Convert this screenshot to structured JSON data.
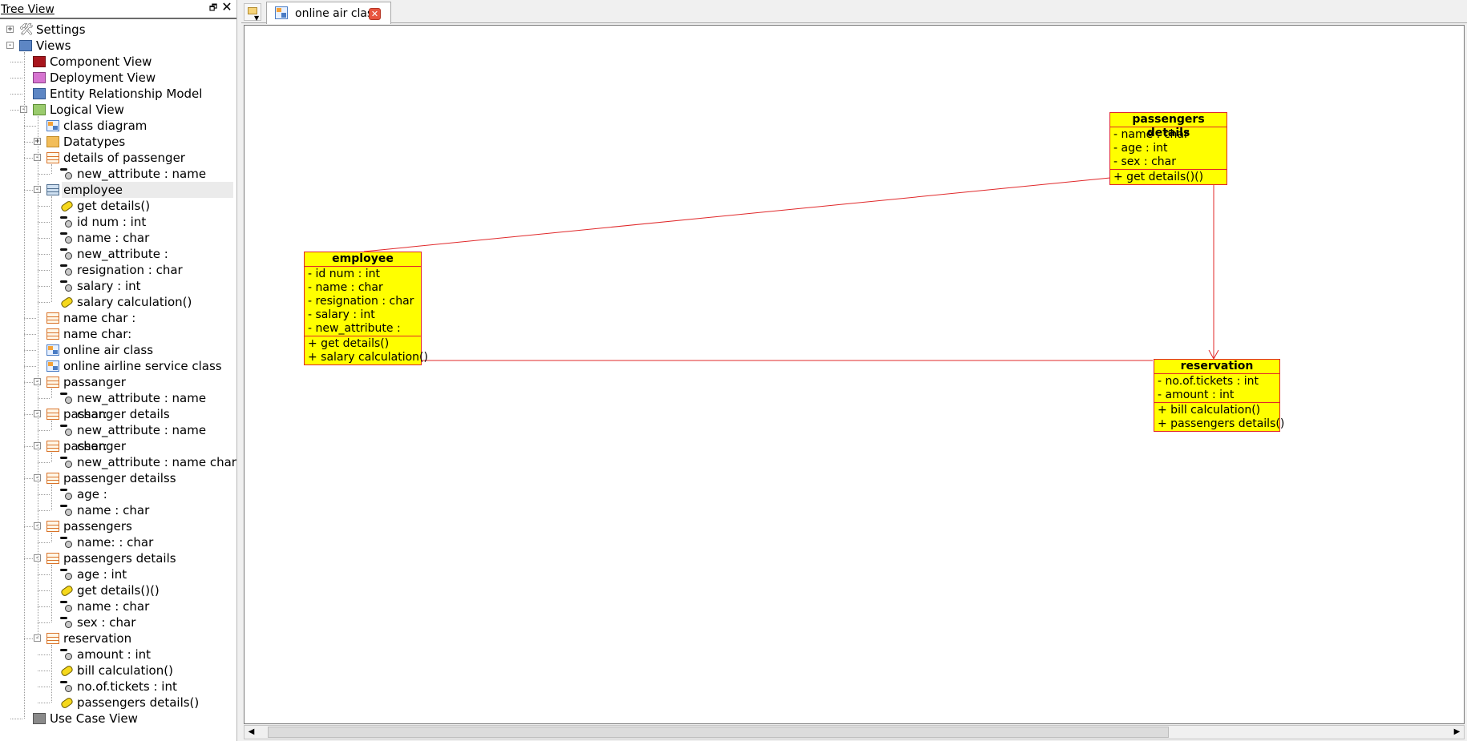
{
  "tree": {
    "title": "Tree View",
    "restore_glyph": "🗗",
    "close_glyph": "✕",
    "nodes": [
      {
        "label": "Settings",
        "icon": "settings-icon",
        "level": 0,
        "toggle": "+"
      },
      {
        "label": "Views",
        "icon": "views-folder-icon",
        "level": 0,
        "toggle": "−"
      },
      {
        "label": "Component View",
        "icon": "component-view-icon",
        "level": 1
      },
      {
        "label": "Deployment View",
        "icon": "deployment-view-icon",
        "level": 1
      },
      {
        "label": "Entity Relationship Model",
        "icon": "erm-icon",
        "level": 1
      },
      {
        "label": "Logical View",
        "icon": "logical-view-icon",
        "level": 1,
        "toggle": "−"
      },
      {
        "label": "class diagram",
        "icon": "diagram-icon",
        "level": 2
      },
      {
        "label": "Datatypes",
        "icon": "folder-icon",
        "level": 2,
        "toggle": "+"
      },
      {
        "label": "details of passenger",
        "icon": "class-icon",
        "level": 2,
        "toggle": "−"
      },
      {
        "label": "new_attribute : name char:",
        "icon": "attribute-icon",
        "level": 3
      },
      {
        "label": "employee",
        "icon": "class-icon-selected",
        "level": 2,
        "toggle": "−",
        "selected": true
      },
      {
        "label": "get details()",
        "icon": "operation-icon",
        "level": 3
      },
      {
        "label": "id num : int",
        "icon": "attribute-icon",
        "level": 3
      },
      {
        "label": "name : char",
        "icon": "attribute-icon",
        "level": 3
      },
      {
        "label": "new_attribute :",
        "icon": "attribute-icon",
        "level": 3
      },
      {
        "label": "resignation : char",
        "icon": "attribute-icon",
        "level": 3
      },
      {
        "label": "salary : int",
        "icon": "attribute-icon",
        "level": 3
      },
      {
        "label": "salary calculation()",
        "icon": "operation-icon",
        "level": 3
      },
      {
        "label": "name char :",
        "icon": "class-icon",
        "level": 2
      },
      {
        "label": "name char:",
        "icon": "class-icon",
        "level": 2
      },
      {
        "label": "online air class",
        "icon": "diagram-icon",
        "level": 2
      },
      {
        "label": "online airline service class",
        "icon": "diagram-icon",
        "level": 2
      },
      {
        "label": "passanger",
        "icon": "class-icon",
        "level": 2,
        "toggle": "−"
      },
      {
        "label": "new_attribute : name char:",
        "icon": "attribute-icon",
        "level": 3
      },
      {
        "label": "passanger details",
        "icon": "class-icon",
        "level": 2,
        "toggle": "−"
      },
      {
        "label": "new_attribute : name char:",
        "icon": "attribute-icon",
        "level": 3
      },
      {
        "label": "passenger",
        "icon": "class-icon",
        "level": 2,
        "toggle": "−"
      },
      {
        "label": "new_attribute : name char :",
        "icon": "attribute-icon",
        "level": 3
      },
      {
        "label": "passenger detailss",
        "icon": "class-icon",
        "level": 2,
        "toggle": "−"
      },
      {
        "label": "age  :",
        "icon": "attribute-icon",
        "level": 3
      },
      {
        "label": "name : char",
        "icon": "attribute-icon",
        "level": 3
      },
      {
        "label": "passengers",
        "icon": "class-icon",
        "level": 2,
        "toggle": "−"
      },
      {
        "label": "name: : char",
        "icon": "attribute-icon",
        "level": 3
      },
      {
        "label": "passengers details",
        "icon": "class-icon",
        "level": 2,
        "toggle": "−"
      },
      {
        "label": "age : int",
        "icon": "attribute-icon",
        "level": 3
      },
      {
        "label": "get details()()",
        "icon": "operation-icon",
        "level": 3
      },
      {
        "label": "name : char",
        "icon": "attribute-icon",
        "level": 3
      },
      {
        "label": "sex : char",
        "icon": "attribute-icon",
        "level": 3
      },
      {
        "label": "reservation",
        "icon": "class-icon",
        "level": 2,
        "toggle": "−"
      },
      {
        "label": "amount : int",
        "icon": "attribute-icon",
        "level": 3
      },
      {
        "label": "bill calculation()",
        "icon": "operation-icon",
        "level": 3
      },
      {
        "label": "no.of.tickets : int",
        "icon": "attribute-icon",
        "level": 3
      },
      {
        "label": "passengers details()",
        "icon": "operation-icon",
        "level": 3
      },
      {
        "label": "Use Case View",
        "icon": "use-case-view-icon",
        "level": 1
      }
    ]
  },
  "editor": {
    "tab_label": "online air class",
    "tab_close_glyph": "✕",
    "scroll_left_glyph": "◀",
    "scroll_right_glyph": "▶"
  },
  "diagram": {
    "line_color": "#e0282a",
    "box_fill": "#ffff00",
    "classes": {
      "passengers_details": {
        "name": "passengers details",
        "attributes": [
          "- name : char",
          "- age : int",
          "- sex : char"
        ],
        "operations": [
          "+ get details()()"
        ]
      },
      "employee": {
        "name": "employee",
        "attributes": [
          "- id num : int",
          "- name : char",
          "- resignation : char",
          "- salary : int",
          "- new_attribute :"
        ],
        "operations": [
          "+ get details()",
          "+ salary calculation()"
        ]
      },
      "reservation": {
        "name": "reservation",
        "attributes": [
          "- no.of.tickets : int",
          "- amount : int"
        ],
        "operations": [
          "+ bill calculation()",
          "+ passengers details()"
        ]
      }
    }
  }
}
